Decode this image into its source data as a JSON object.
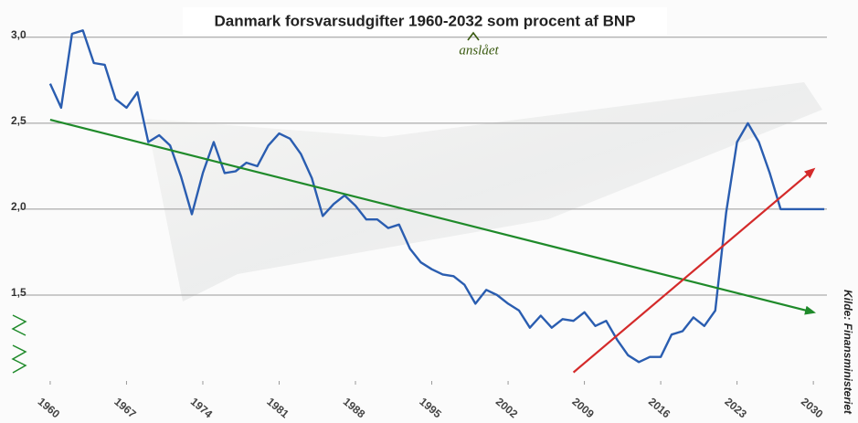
{
  "chart_data": {
    "type": "line",
    "title": "Danmark forsvarsudgifter 1960-2032 som procent af BNP",
    "annotation": "anslået",
    "source": "Kilde: Finansministeriet",
    "x": [
      1960,
      1961,
      1962,
      1963,
      1964,
      1965,
      1966,
      1967,
      1968,
      1969,
      1970,
      1971,
      1972,
      1973,
      1974,
      1975,
      1976,
      1977,
      1978,
      1979,
      1980,
      1981,
      1982,
      1983,
      1984,
      1985,
      1986,
      1987,
      1988,
      1989,
      1990,
      1991,
      1992,
      1993,
      1994,
      1995,
      1996,
      1997,
      1998,
      1999,
      2000,
      2001,
      2002,
      2003,
      2004,
      2005,
      2006,
      2007,
      2008,
      2009,
      2010,
      2011,
      2012,
      2013,
      2014,
      2015,
      2016,
      2017,
      2018,
      2019,
      2020,
      2021,
      2022,
      2023,
      2024,
      2025,
      2026,
      2027,
      2028,
      2029,
      2030,
      2031
    ],
    "series": [
      {
        "color": "#2a5db0",
        "values": [
          2.73,
          2.59,
          3.02,
          3.04,
          2.85,
          2.84,
          2.64,
          2.59,
          2.68,
          2.39,
          2.43,
          2.37,
          2.19,
          1.97,
          2.21,
          2.39,
          2.21,
          2.22,
          2.27,
          2.25,
          2.37,
          2.44,
          2.41,
          2.32,
          2.18,
          1.96,
          2.03,
          2.08,
          2.02,
          1.94,
          1.94,
          1.89,
          1.91,
          1.77,
          1.69,
          1.65,
          1.62,
          1.61,
          1.56,
          1.45,
          1.53,
          1.5,
          1.45,
          1.41,
          1.31,
          1.38,
          1.31,
          1.36,
          1.35,
          1.4,
          1.32,
          1.35,
          1.24,
          1.15,
          1.11,
          1.14,
          1.14,
          1.27,
          1.29,
          1.37,
          1.32,
          1.41,
          1.98,
          2.39,
          2.5,
          2.39,
          2.21,
          2.0,
          2.0,
          2.0,
          2.0,
          2.0
        ]
      },
      {
        "color": "#1f8a2a",
        "x": [
          1960,
          2030
        ],
        "values": [
          2.52,
          1.4
        ],
        "arrow": true
      },
      {
        "color": "#d42a2a",
        "x": [
          2008,
          2030
        ],
        "values": [
          1.05,
          2.23
        ],
        "arrow": true
      }
    ],
    "xlim": [
      1959,
      2032
    ],
    "xticks": [
      1960,
      1967,
      1974,
      1981,
      1988,
      1995,
      2002,
      2009,
      2016,
      2023,
      2030
    ],
    "ylim": [
      1.0,
      3.1
    ],
    "yticks": [
      {
        "value": 1.5,
        "label": "1,5"
      },
      {
        "value": 2.0,
        "label": "2,0"
      },
      {
        "value": 2.5,
        "label": "2,5"
      },
      {
        "value": 3.0,
        "label": "3,0"
      }
    ],
    "grid": true
  }
}
